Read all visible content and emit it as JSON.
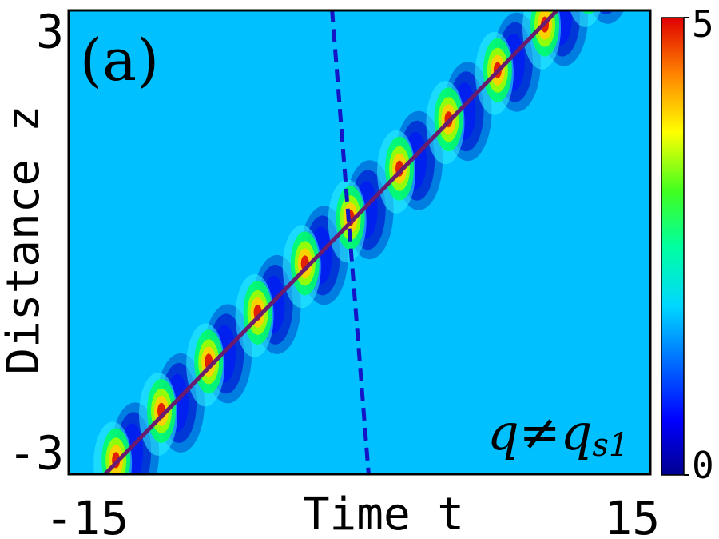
{
  "chart_data": {
    "type": "heatmap",
    "panel_label": "(a)",
    "xlabel": "Time t",
    "ylabel": "Distance z",
    "xlim": [
      -16,
      16
    ],
    "ylim": [
      -3.3,
      3.3
    ],
    "x_ticks": [
      {
        "value": -15,
        "label": "-15"
      },
      {
        "value": 15,
        "label": "15"
      }
    ],
    "y_ticks": [
      {
        "value": -3,
        "label": "-3"
      },
      {
        "value": 3,
        "label": "3"
      }
    ],
    "colorbar": {
      "min": 0,
      "max": 5,
      "background_value": 1.8,
      "ticks": [
        {
          "value": 0,
          "label": "0"
        },
        {
          "value": 5,
          "label": "5"
        }
      ]
    },
    "peaks": [
      {
        "t": -13.4,
        "z": -3.1
      },
      {
        "t": -10.9,
        "z": -2.4
      },
      {
        "t": -8.3,
        "z": -1.7
      },
      {
        "t": -5.6,
        "z": -1.0
      },
      {
        "t": -3.0,
        "z": -0.3
      },
      {
        "t": -0.5,
        "z": 0.35
      },
      {
        "t": 2.2,
        "z": 1.05
      },
      {
        "t": 4.9,
        "z": 1.75
      },
      {
        "t": 7.6,
        "z": 2.45
      },
      {
        "t": 10.2,
        "z": 3.1
      },
      {
        "t": 12.6,
        "z": 3.7
      }
    ],
    "solid_line": {
      "points": [
        {
          "t": -14.0,
          "z": -3.3
        },
        {
          "t": 12.0,
          "z": 3.6
        }
      ],
      "color": "#6a1b6e"
    },
    "dashed_line": {
      "points": [
        {
          "t": -1.6,
          "z": 3.6
        },
        {
          "t": 0.5,
          "z": -3.3
        }
      ],
      "color": "#1515c8"
    },
    "annotation": {
      "text": "q≠q",
      "subscript": "s1"
    }
  }
}
